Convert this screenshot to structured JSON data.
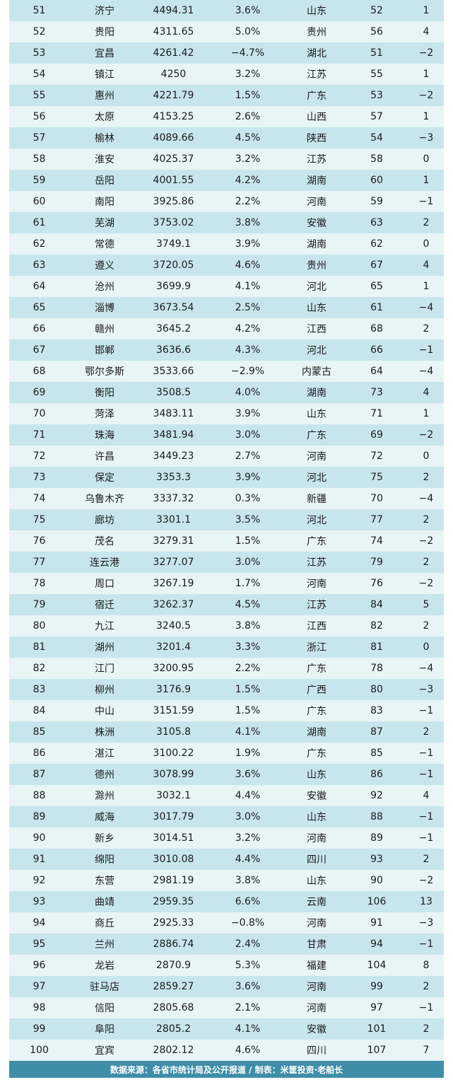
{
  "rows": [
    {
      "rank": "51",
      "city": "济宁",
      "gdp": "4494.31",
      "growth": "3.6%",
      "province": "山东",
      "prev_rank": "52",
      "change": "1"
    },
    {
      "rank": "52",
      "city": "贵阳",
      "gdp": "4311.65",
      "growth": "5.0%",
      "province": "贵州",
      "prev_rank": "56",
      "change": "4"
    },
    {
      "rank": "53",
      "city": "宜昌",
      "gdp": "4261.42",
      "growth": "−4.7%",
      "province": "湖北",
      "prev_rank": "51",
      "change": "−2"
    },
    {
      "rank": "54",
      "city": "镇江",
      "gdp": "4250",
      "growth": "3.2%",
      "province": "江苏",
      "prev_rank": "55",
      "change": "1"
    },
    {
      "rank": "55",
      "city": "惠州",
      "gdp": "4221.79",
      "growth": "1.5%",
      "province": "广东",
      "prev_rank": "53",
      "change": "−2"
    },
    {
      "rank": "56",
      "city": "太原",
      "gdp": "4153.25",
      "growth": "2.6%",
      "province": "山西",
      "prev_rank": "57",
      "change": "1"
    },
    {
      "rank": "57",
      "city": "榆林",
      "gdp": "4089.66",
      "growth": "4.5%",
      "province": "陕西",
      "prev_rank": "54",
      "change": "−3"
    },
    {
      "rank": "58",
      "city": "淮安",
      "gdp": "4025.37",
      "growth": "3.2%",
      "province": "江苏",
      "prev_rank": "58",
      "change": "0"
    },
    {
      "rank": "59",
      "city": "岳阳",
      "gdp": "4001.55",
      "growth": "4.2%",
      "province": "湖南",
      "prev_rank": "60",
      "change": "1"
    },
    {
      "rank": "60",
      "city": "南阳",
      "gdp": "3925.86",
      "growth": "2.2%",
      "province": "河南",
      "prev_rank": "59",
      "change": "−1"
    },
    {
      "rank": "61",
      "city": "芜湖",
      "gdp": "3753.02",
      "growth": "3.8%",
      "province": "安徽",
      "prev_rank": "63",
      "change": "2"
    },
    {
      "rank": "62",
      "city": "常德",
      "gdp": "3749.1",
      "growth": "3.9%",
      "province": "湖南",
      "prev_rank": "62",
      "change": "0"
    },
    {
      "rank": "63",
      "city": "遵义",
      "gdp": "3720.05",
      "growth": "4.6%",
      "province": "贵州",
      "prev_rank": "67",
      "change": "4"
    },
    {
      "rank": "64",
      "city": "沧州",
      "gdp": "3699.9",
      "growth": "4.1%",
      "province": "河北",
      "prev_rank": "65",
      "change": "1"
    },
    {
      "rank": "65",
      "city": "淄博",
      "gdp": "3673.54",
      "growth": "2.5%",
      "province": "山东",
      "prev_rank": "61",
      "change": "−4"
    },
    {
      "rank": "66",
      "city": "赣州",
      "gdp": "3645.2",
      "growth": "4.2%",
      "province": "江西",
      "prev_rank": "68",
      "change": "2"
    },
    {
      "rank": "67",
      "city": "邯郸",
      "gdp": "3636.6",
      "growth": "4.3%",
      "province": "河北",
      "prev_rank": "66",
      "change": "−1"
    },
    {
      "rank": "68",
      "city": "鄂尔多斯",
      "gdp": "3533.66",
      "growth": "−2.9%",
      "province": "内蒙古",
      "prev_rank": "64",
      "change": "−4"
    },
    {
      "rank": "69",
      "city": "衡阳",
      "gdp": "3508.5",
      "growth": "4.0%",
      "province": "湖南",
      "prev_rank": "73",
      "change": "4"
    },
    {
      "rank": "70",
      "city": "菏泽",
      "gdp": "3483.11",
      "growth": "3.9%",
      "province": "山东",
      "prev_rank": "71",
      "change": "1"
    },
    {
      "rank": "71",
      "city": "珠海",
      "gdp": "3481.94",
      "growth": "3.0%",
      "province": "广东",
      "prev_rank": "69",
      "change": "−2"
    },
    {
      "rank": "72",
      "city": "许昌",
      "gdp": "3449.23",
      "growth": "2.7%",
      "province": "河南",
      "prev_rank": "72",
      "change": "0"
    },
    {
      "rank": "73",
      "city": "保定",
      "gdp": "3353.3",
      "growth": "3.9%",
      "province": "河北",
      "prev_rank": "75",
      "change": "2"
    },
    {
      "rank": "74",
      "city": "乌鲁木齐",
      "gdp": "3337.32",
      "growth": "0.3%",
      "province": "新疆",
      "prev_rank": "70",
      "change": "−4"
    },
    {
      "rank": "75",
      "city": "廊坊",
      "gdp": "3301.1",
      "growth": "3.5%",
      "province": "河北",
      "prev_rank": "77",
      "change": "2"
    },
    {
      "rank": "76",
      "city": "茂名",
      "gdp": "3279.31",
      "growth": "1.5%",
      "province": "广东",
      "prev_rank": "74",
      "change": "−2"
    },
    {
      "rank": "77",
      "city": "连云港",
      "gdp": "3277.07",
      "growth": "3.0%",
      "province": "江苏",
      "prev_rank": "79",
      "change": "2"
    },
    {
      "rank": "78",
      "city": "周口",
      "gdp": "3267.19",
      "growth": "1.7%",
      "province": "河南",
      "prev_rank": "76",
      "change": "−2"
    },
    {
      "rank": "79",
      "city": "宿迁",
      "gdp": "3262.37",
      "growth": "4.5%",
      "province": "江苏",
      "prev_rank": "84",
      "change": "5"
    },
    {
      "rank": "80",
      "city": "九江",
      "gdp": "3240.5",
      "growth": "3.8%",
      "province": "江西",
      "prev_rank": "82",
      "change": "2"
    },
    {
      "rank": "81",
      "city": "湖州",
      "gdp": "3201.4",
      "growth": "3.3%",
      "province": "浙江",
      "prev_rank": "81",
      "change": "0"
    },
    {
      "rank": "82",
      "city": "江门",
      "gdp": "3200.95",
      "growth": "2.2%",
      "province": "广东",
      "prev_rank": "78",
      "change": "−4"
    },
    {
      "rank": "83",
      "city": "柳州",
      "gdp": "3176.9",
      "growth": "1.5%",
      "province": "广西",
      "prev_rank": "80",
      "change": "−3"
    },
    {
      "rank": "84",
      "city": "中山",
      "gdp": "3151.59",
      "growth": "1.5%",
      "province": "广东",
      "prev_rank": "83",
      "change": "−1"
    },
    {
      "rank": "85",
      "city": "株洲",
      "gdp": "3105.8",
      "growth": "4.1%",
      "province": "湖南",
      "prev_rank": "87",
      "change": "2"
    },
    {
      "rank": "86",
      "city": "湛江",
      "gdp": "3100.22",
      "growth": "1.9%",
      "province": "广东",
      "prev_rank": "85",
      "change": "−1"
    },
    {
      "rank": "87",
      "city": "德州",
      "gdp": "3078.99",
      "growth": "3.6%",
      "province": "山东",
      "prev_rank": "86",
      "change": "−1"
    },
    {
      "rank": "88",
      "city": "滁州",
      "gdp": "3032.1",
      "growth": "4.4%",
      "province": "安徽",
      "prev_rank": "92",
      "change": "4"
    },
    {
      "rank": "89",
      "city": "威海",
      "gdp": "3017.79",
      "growth": "3.0%",
      "province": "山东",
      "prev_rank": "88",
      "change": "−1"
    },
    {
      "rank": "90",
      "city": "新乡",
      "gdp": "3014.51",
      "growth": "3.2%",
      "province": "河南",
      "prev_rank": "89",
      "change": "−1"
    },
    {
      "rank": "91",
      "city": "绵阳",
      "gdp": "3010.08",
      "growth": "4.4%",
      "province": "四川",
      "prev_rank": "93",
      "change": "2"
    },
    {
      "rank": "92",
      "city": "东营",
      "gdp": "2981.19",
      "growth": "3.8%",
      "province": "山东",
      "prev_rank": "90",
      "change": "−2"
    },
    {
      "rank": "93",
      "city": "曲靖",
      "gdp": "2959.35",
      "growth": "6.6%",
      "province": "云南",
      "prev_rank": "106",
      "change": "13"
    },
    {
      "rank": "94",
      "city": "商丘",
      "gdp": "2925.33",
      "growth": "−0.8%",
      "province": "河南",
      "prev_rank": "91",
      "change": "−3"
    },
    {
      "rank": "95",
      "city": "兰州",
      "gdp": "2886.74",
      "growth": "2.4%",
      "province": "甘肃",
      "prev_rank": "94",
      "change": "−1"
    },
    {
      "rank": "96",
      "city": "龙岩",
      "gdp": "2870.9",
      "growth": "5.3%",
      "province": "福建",
      "prev_rank": "104",
      "change": "8"
    },
    {
      "rank": "97",
      "city": "驻马店",
      "gdp": "2859.27",
      "growth": "3.6%",
      "province": "河南",
      "prev_rank": "99",
      "change": "2"
    },
    {
      "rank": "98",
      "city": "信阳",
      "gdp": "2805.68",
      "growth": "2.1%",
      "province": "河南",
      "prev_rank": "97",
      "change": "−1"
    },
    {
      "rank": "99",
      "city": "阜阳",
      "gdp": "2805.2",
      "growth": "4.1%",
      "province": "安徽",
      "prev_rank": "101",
      "change": "2"
    },
    {
      "rank": "100",
      "city": "宜宾",
      "gdp": "2802.12",
      "growth": "4.6%",
      "province": "四川",
      "prev_rank": "107",
      "change": "7"
    }
  ],
  "footer": {
    "text": "数据来源：各省市统计局及公开报道 / 制表：米筐投资·老船长"
  }
}
